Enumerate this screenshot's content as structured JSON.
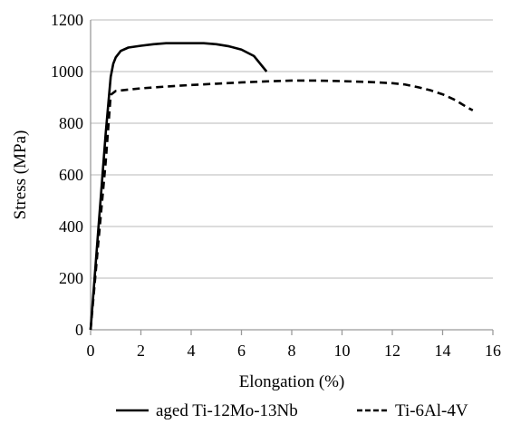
{
  "chart_data": {
    "type": "line",
    "xlabel": "Elongation (%)",
    "ylabel": "Stress (MPa)",
    "xlim": [
      0,
      16
    ],
    "ylim": [
      0,
      1200
    ],
    "xticks": [
      "0",
      "2",
      "4",
      "6",
      "8",
      "10",
      "12",
      "14",
      "16"
    ],
    "yticks": [
      "0",
      "200",
      "400",
      "600",
      "800",
      "1000",
      "1200"
    ],
    "grid": "horizontal",
    "legend_position": "bottom",
    "series": [
      {
        "name": "aged Ti-12Mo-13Nb",
        "style": "solid",
        "color": "#000000",
        "x": [
          0,
          0.3,
          0.6,
          0.8,
          0.9,
          1.0,
          1.2,
          1.5,
          2.0,
          2.5,
          3.0,
          3.5,
          4.0,
          4.5,
          5.0,
          5.5,
          6.0,
          6.5,
          7.0
        ],
        "y": [
          0,
          380,
          760,
          980,
          1030,
          1055,
          1080,
          1093,
          1100,
          1106,
          1110,
          1110,
          1110,
          1110,
          1106,
          1098,
          1085,
          1060,
          1000
        ]
      },
      {
        "name": "Ti-6Al-4V",
        "style": "dashed",
        "color": "#000000",
        "x": [
          0,
          0.3,
          0.6,
          0.8,
          1.0,
          1.5,
          2,
          3,
          4,
          5,
          6,
          7,
          8,
          9,
          10,
          11,
          12,
          12.5,
          13,
          13.5,
          14,
          14.5,
          15.0,
          15.2
        ],
        "y": [
          0,
          330,
          650,
          910,
          925,
          930,
          935,
          942,
          948,
          953,
          958,
          962,
          965,
          965,
          963,
          960,
          955,
          950,
          940,
          928,
          912,
          890,
          860,
          850
        ]
      }
    ]
  }
}
